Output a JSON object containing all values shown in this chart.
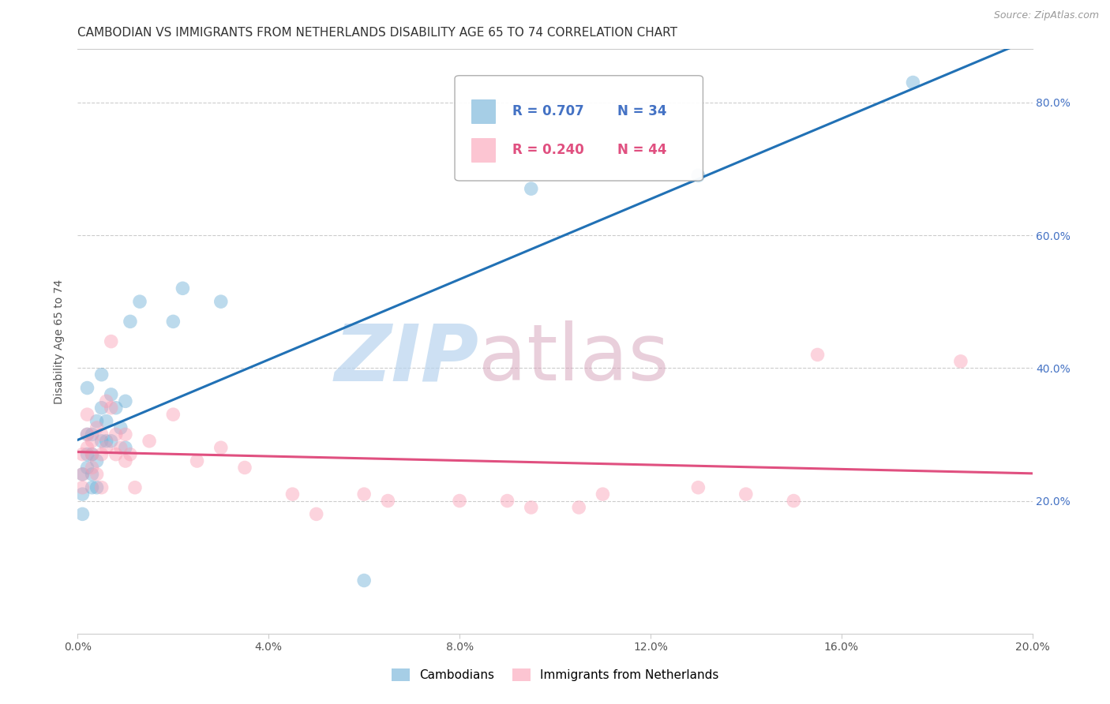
{
  "title": "CAMBODIAN VS IMMIGRANTS FROM NETHERLANDS DISABILITY AGE 65 TO 74 CORRELATION CHART",
  "source": "Source: ZipAtlas.com",
  "ylabel": "Disability Age 65 to 74",
  "xlabel": "",
  "watermark": "ZIPatlas",
  "legend1_label": "Cambodians",
  "legend2_label": "Immigrants from Netherlands",
  "R1": 0.707,
  "N1": 34,
  "R2": 0.24,
  "N2": 44,
  "blue_color": "#6baed6",
  "pink_color": "#fa9fb5",
  "blue_line_color": "#2171b5",
  "pink_line_color": "#e05080",
  "blue_text_color": "#4472c4",
  "pink_text_color": "#e05080",
  "right_tick_color": "#4472c4",
  "xlim": [
    0.0,
    0.2
  ],
  "ylim": [
    0.0,
    0.88
  ],
  "yticks": [
    0.2,
    0.4,
    0.6,
    0.8
  ],
  "xticks": [
    0.0,
    0.04,
    0.08,
    0.12,
    0.16,
    0.2
  ],
  "cambodians_x": [
    0.001,
    0.001,
    0.001,
    0.002,
    0.002,
    0.002,
    0.002,
    0.003,
    0.003,
    0.003,
    0.003,
    0.004,
    0.004,
    0.004,
    0.005,
    0.005,
    0.005,
    0.006,
    0.006,
    0.007,
    0.007,
    0.008,
    0.009,
    0.01,
    0.01,
    0.011,
    0.013,
    0.02,
    0.022,
    0.03,
    0.06,
    0.095,
    0.13,
    0.175
  ],
  "cambodians_y": [
    0.21,
    0.18,
    0.24,
    0.25,
    0.27,
    0.3,
    0.37,
    0.24,
    0.22,
    0.27,
    0.3,
    0.22,
    0.26,
    0.32,
    0.29,
    0.34,
    0.39,
    0.29,
    0.32,
    0.36,
    0.29,
    0.34,
    0.31,
    0.28,
    0.35,
    0.47,
    0.5,
    0.47,
    0.52,
    0.5,
    0.08,
    0.67,
    0.69,
    0.83
  ],
  "netherlands_x": [
    0.001,
    0.001,
    0.001,
    0.002,
    0.002,
    0.002,
    0.003,
    0.003,
    0.003,
    0.004,
    0.004,
    0.005,
    0.005,
    0.005,
    0.006,
    0.006,
    0.007,
    0.007,
    0.008,
    0.008,
    0.009,
    0.01,
    0.01,
    0.011,
    0.012,
    0.015,
    0.02,
    0.025,
    0.03,
    0.035,
    0.045,
    0.05,
    0.06,
    0.065,
    0.08,
    0.09,
    0.095,
    0.105,
    0.11,
    0.13,
    0.14,
    0.15,
    0.155,
    0.185
  ],
  "netherlands_y": [
    0.24,
    0.27,
    0.22,
    0.3,
    0.28,
    0.33,
    0.27,
    0.25,
    0.29,
    0.31,
    0.24,
    0.27,
    0.3,
    0.22,
    0.35,
    0.28,
    0.44,
    0.34,
    0.3,
    0.27,
    0.28,
    0.26,
    0.3,
    0.27,
    0.22,
    0.29,
    0.33,
    0.26,
    0.28,
    0.25,
    0.21,
    0.18,
    0.21,
    0.2,
    0.2,
    0.2,
    0.19,
    0.19,
    0.21,
    0.22,
    0.21,
    0.2,
    0.42,
    0.41
  ],
  "background_color": "#ffffff",
  "grid_color": "#cccccc",
  "title_fontsize": 11,
  "axis_label_fontsize": 10,
  "tick_fontsize": 10,
  "legend_fontsize": 12
}
